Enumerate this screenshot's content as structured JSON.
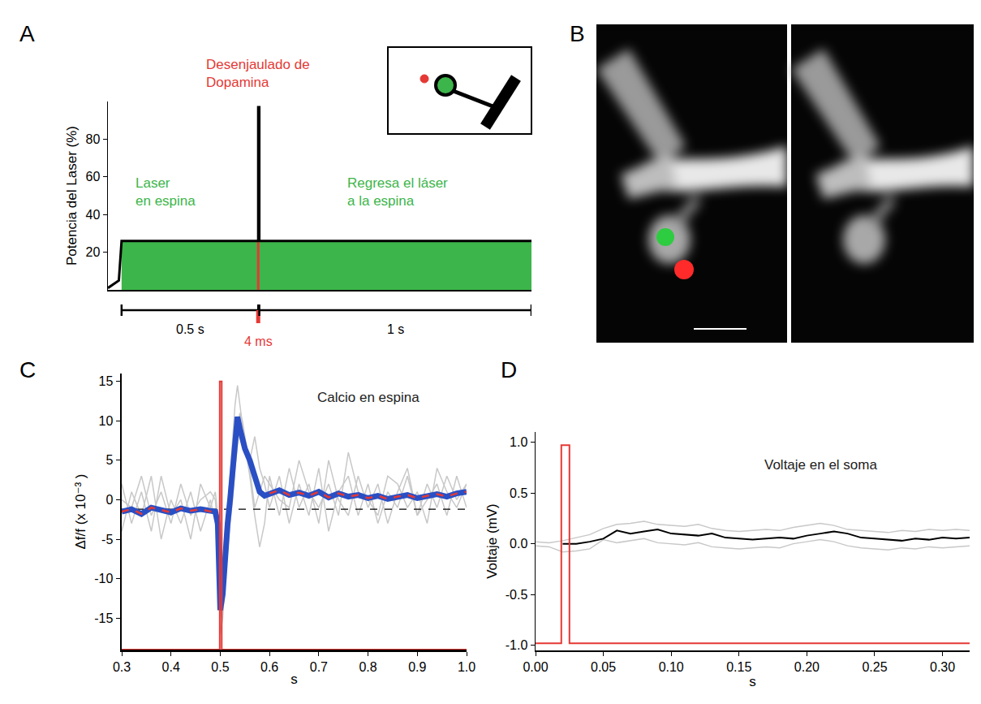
{
  "chart_data": [
    {
      "panel_label": "A",
      "type": "line",
      "y_label": "Potencia del Laser (%)",
      "xlim": [
        -0.05,
        1.5
      ],
      "ylim": [
        0,
        100
      ],
      "yticks": [
        20,
        40,
        60,
        80
      ],
      "tick_labels": "y",
      "series": [
        {
          "type": "area",
          "color": "#3cb54a",
          "x": [
            0,
            1.5
          ],
          "values": [
            26,
            26
          ]
        },
        {
          "color": "#e53935",
          "x": [
            0.5,
            0.5
          ],
          "values": [
            0,
            26
          ]
        },
        {
          "color": "#000000",
          "x": [
            -0.05,
            -0.03,
            -0.01,
            0,
            0.5,
            0.5,
            0.504,
            0.504,
            1.5
          ],
          "values": [
            1,
            3,
            5,
            26,
            26,
            97,
            97,
            26,
            26
          ]
        }
      ],
      "annotations": [
        {
          "text": [
            "Desenjaulado de",
            "Dopamina"
          ],
          "color": "#e53935"
        },
        {
          "text": [
            "Laser",
            "en espina"
          ],
          "color": "#3cb54a"
        },
        {
          "text": [
            "Regresa el láser",
            "a la espina"
          ],
          "color": "#3cb54a"
        }
      ],
      "time_segments": [
        {
          "label": "0.5 s",
          "start": 0,
          "end": 0.5,
          "color": "#000000"
        },
        {
          "label": "4 ms",
          "start": 0.5,
          "end": 0.504,
          "color": "#e53935"
        },
        {
          "label": "1 s",
          "start": 0.504,
          "end": 1.5,
          "color": "#000000"
        }
      ]
    },
    {
      "panel_label": "C",
      "type": "line",
      "x_label": "s",
      "y_label": "Δf/f (x 10⁻³ )",
      "xlim": [
        0.3,
        1.0
      ],
      "xticks": [
        0.3,
        0.4,
        0.5,
        0.6,
        0.7,
        0.8,
        0.9,
        {
          "value": 1.0,
          "label": "1.0"
        }
      ],
      "ylim": [
        -19,
        16
      ],
      "yticks": [
        -15,
        -10,
        -5,
        0,
        5,
        10,
        15
      ],
      "series": [
        {
          "color": "#c8c8c8",
          "x": [
            0.3,
            0.32,
            0.34,
            0.36,
            0.38,
            0.4,
            0.42,
            0.44,
            0.46,
            0.48,
            0.49,
            0.495,
            0.5,
            0.505,
            0.51,
            0.515,
            0.52,
            0.525,
            0.53,
            0.535,
            0.54,
            0.545,
            0.55,
            0.56,
            0.57,
            0.58,
            0.59,
            0.6,
            0.62,
            0.64,
            0.66,
            0.68,
            0.7,
            0.72,
            0.74,
            0.76,
            0.78,
            0.8,
            0.82,
            0.84,
            0.86,
            0.88,
            0.9,
            0.92,
            0.94,
            0.96,
            0.98,
            1.0
          ],
          "values": [
            2,
            -3,
            1,
            -4,
            3,
            -2,
            0,
            -5,
            2,
            -1,
            1,
            -2,
            -10,
            -8,
            -4,
            -1,
            3,
            8,
            12,
            14.5,
            12,
            9,
            7,
            3,
            -2,
            -6,
            -3,
            3,
            -2,
            4,
            -1,
            2,
            -3,
            5,
            0,
            -2,
            3,
            -1,
            2,
            -3,
            1,
            4,
            -2,
            2,
            -1,
            3,
            0,
            2
          ]
        },
        {
          "color": "#c8c8c8",
          "x": [
            0.3,
            0.32,
            0.34,
            0.36,
            0.38,
            0.4,
            0.42,
            0.44,
            0.46,
            0.48,
            0.49,
            0.495,
            0.5,
            0.505,
            0.51,
            0.515,
            0.52,
            0.525,
            0.53,
            0.535,
            0.54,
            0.545,
            0.55,
            0.56,
            0.57,
            0.58,
            0.59,
            0.6,
            0.62,
            0.64,
            0.66,
            0.68,
            0.7,
            0.72,
            0.74,
            0.76,
            0.78,
            0.8,
            0.82,
            0.84,
            0.86,
            0.88,
            0.9,
            0.92,
            0.94,
            0.96,
            0.98,
            1.0
          ],
          "values": [
            -4,
            1,
            -2,
            3,
            -5,
            0,
            -3,
            1,
            -4,
            0,
            -3,
            -5,
            -17,
            -15,
            -10,
            -6,
            -3,
            0,
            4,
            7,
            9,
            8,
            6,
            5,
            8,
            4,
            2,
            -1,
            3,
            -3,
            2,
            -2,
            4,
            -4,
            1,
            3,
            -2,
            2,
            -3,
            1,
            -1,
            3,
            -2,
            0,
            2,
            -2,
            3,
            -1
          ]
        },
        {
          "color": "#c8c8c8",
          "x": [
            0.3,
            0.32,
            0.34,
            0.36,
            0.38,
            0.4,
            0.42,
            0.44,
            0.46,
            0.48,
            0.49,
            0.495,
            0.5,
            0.505,
            0.51,
            0.515,
            0.52,
            0.525,
            0.53,
            0.535,
            0.54,
            0.545,
            0.55,
            0.56,
            0.57,
            0.58,
            0.59,
            0.6,
            0.62,
            0.64,
            0.66,
            0.68,
            0.7,
            0.72,
            0.74,
            0.76,
            0.78,
            0.8,
            0.82,
            0.84,
            0.86,
            0.88,
            0.9,
            0.92,
            0.94,
            0.96,
            0.98,
            1.0
          ],
          "values": [
            0,
            -1,
            3,
            -2,
            1,
            -3,
            2,
            -2,
            0,
            1,
            0,
            -4,
            -15,
            -13,
            -9,
            -4,
            -1,
            2,
            6,
            9,
            11,
            10,
            8,
            4,
            -1,
            1,
            3,
            2,
            0,
            -1,
            5,
            1,
            -1,
            2,
            -2,
            6,
            1,
            0,
            -2,
            3,
            2,
            -1,
            1,
            -3,
            4,
            1,
            -1,
            2
          ]
        },
        {
          "color": "#000000",
          "line_style": "dashed",
          "x": [
            0.3,
            1.0
          ],
          "values": [
            -1.2,
            -1.2
          ]
        },
        {
          "color": "#2a4fc4",
          "x": [
            0.3,
            0.32,
            0.34,
            0.36,
            0.38,
            0.4,
            0.42,
            0.44,
            0.46,
            0.48,
            0.49,
            0.495,
            0.5,
            0.505,
            0.51,
            0.515,
            0.52,
            0.525,
            0.53,
            0.535,
            0.54,
            0.545,
            0.55,
            0.56,
            0.57,
            0.58,
            0.59,
            0.6,
            0.62,
            0.64,
            0.66,
            0.68,
            0.7,
            0.72,
            0.74,
            0.76,
            0.78,
            0.8,
            0.82,
            0.84,
            0.86,
            0.88,
            0.9,
            0.92,
            0.94,
            0.96,
            0.98,
            1.0
          ],
          "values": [
            -1.5,
            -1.2,
            -1.8,
            -1.0,
            -1.3,
            -1.6,
            -1.1,
            -1.4,
            -1.2,
            -1.5,
            -1.5,
            -3,
            -14,
            -12,
            -7,
            -3,
            0,
            4,
            8,
            10.5,
            9,
            7.5,
            6.5,
            5,
            3,
            1,
            0.5,
            0.8,
            1.2,
            0.6,
            0.9,
            0.5,
            1.0,
            0.3,
            0.8,
            0.4,
            0.6,
            0.2,
            0.5,
            0.1,
            0.4,
            0.6,
            0.2,
            0.5,
            0.7,
            0.4,
            0.8,
            1.0
          ]
        },
        {
          "color": "#e53935",
          "line_style": "dashed",
          "x": [
            0.3,
            0.32,
            0.34,
            0.36,
            0.38,
            0.4,
            0.42,
            0.44,
            0.46,
            0.48,
            0.49,
            0.495,
            0.5,
            0.505,
            0.51,
            0.515,
            0.52,
            0.525,
            0.53,
            0.535,
            0.54,
            0.545,
            0.55,
            0.56,
            0.57,
            0.58,
            0.59,
            0.6,
            0.62,
            0.64,
            0.66,
            0.68,
            0.7,
            0.72,
            0.74,
            0.76,
            0.78,
            0.8,
            0.82,
            0.84,
            0.86,
            0.88,
            0.9,
            0.92,
            0.94,
            0.96,
            0.98,
            1.0
          ],
          "values": [
            -1.5,
            -1.2,
            -1.8,
            -1.0,
            -1.3,
            -1.6,
            -1.1,
            -1.4,
            -1.2,
            -1.5,
            -1.5,
            null,
            null,
            null,
            null,
            null,
            null,
            null,
            null,
            null,
            null,
            null,
            null,
            null,
            null,
            null,
            null,
            0.8,
            1.2,
            0.6,
            0.9,
            0.5,
            1.0,
            0.3,
            0.8,
            0.4,
            0.6,
            0.2,
            0.5,
            0.1,
            0.4,
            0.6,
            0.2,
            0.5,
            0.7,
            0.4,
            0.8,
            1.0
          ]
        },
        {
          "color": "#e53935",
          "x": [
            0.3,
            0.499,
            0.499,
            0.503,
            0.503,
            1.0
          ],
          "values": [
            -19,
            -19,
            15,
            15,
            -19,
            -19
          ]
        }
      ],
      "annotations": [
        {
          "text": [
            "Calcio en espina"
          ],
          "color": "#222222"
        }
      ]
    },
    {
      "panel_label": "D",
      "type": "line",
      "x_label": "s",
      "y_label": "Voltaje (mV)",
      "xlim": [
        0,
        0.32
      ],
      "xticks": [
        {
          "value": 0,
          "label": "0.00"
        },
        {
          "value": 0.05,
          "label": "0.05"
        },
        {
          "value": 0.1,
          "label": "0.10"
        },
        {
          "value": 0.15,
          "label": "0.15"
        },
        {
          "value": 0.2,
          "label": "0.20"
        },
        {
          "value": 0.25,
          "label": "0.25"
        },
        {
          "value": 0.3,
          "label": "0.30"
        }
      ],
      "ylim": [
        -1.05,
        1.1
      ],
      "yticks": [
        {
          "value": -1,
          "label": "-1.0"
        },
        -0.5,
        {
          "value": 0,
          "label": "0.0"
        },
        0.5,
        {
          "value": 1,
          "label": "1.0"
        }
      ],
      "series": [
        {
          "color": "#c8c8c8",
          "x": [
            0,
            0.01,
            0.02,
            0.03,
            0.04,
            0.05,
            0.06,
            0.07,
            0.08,
            0.09,
            0.1,
            0.11,
            0.12,
            0.13,
            0.14,
            0.15,
            0.16,
            0.17,
            0.18,
            0.19,
            0.2,
            0.21,
            0.22,
            0.23,
            0.24,
            0.25,
            0.26,
            0.27,
            0.28,
            0.29,
            0.3,
            0.31,
            0.32
          ],
          "values": [
            0.02,
            0.01,
            0.03,
            0.06,
            0.09,
            0.15,
            0.19,
            0.2,
            0.22,
            0.19,
            0.18,
            0.17,
            0.19,
            0.15,
            0.13,
            0.12,
            0.13,
            0.14,
            0.13,
            0.16,
            0.18,
            0.2,
            0.18,
            0.14,
            0.13,
            0.12,
            0.11,
            0.13,
            0.12,
            0.14,
            0.13,
            0.14,
            0.13
          ]
        },
        {
          "color": "#c8c8c8",
          "x": [
            0,
            0.01,
            0.02,
            0.03,
            0.04,
            0.05,
            0.06,
            0.07,
            0.08,
            0.09,
            0.1,
            0.11,
            0.12,
            0.13,
            0.14,
            0.15,
            0.16,
            0.17,
            0.18,
            0.19,
            0.2,
            0.21,
            0.22,
            0.23,
            0.24,
            0.25,
            0.26,
            0.27,
            0.28,
            0.29,
            0.3,
            0.31,
            0.32
          ],
          "values": [
            -0.02,
            -0.03,
            -0.08,
            -0.07,
            -0.05,
            0.04,
            0.01,
            0.03,
            0.05,
            0.01,
            0.0,
            -0.01,
            0.01,
            -0.03,
            -0.04,
            -0.05,
            -0.04,
            -0.03,
            -0.04,
            0.0,
            0.02,
            0.04,
            0.02,
            -0.02,
            -0.04,
            -0.05,
            -0.06,
            -0.04,
            -0.05,
            -0.03,
            -0.04,
            -0.03,
            -0.02
          ]
        },
        {
          "color": "#000000",
          "x": [
            0,
            0.01,
            0.02,
            0.03,
            0.04,
            0.05,
            0.06,
            0.07,
            0.08,
            0.09,
            0.1,
            0.11,
            0.12,
            0.13,
            0.14,
            0.15,
            0.16,
            0.17,
            0.18,
            0.19,
            0.2,
            0.21,
            0.22,
            0.23,
            0.24,
            0.25,
            0.26,
            0.27,
            0.28,
            0.29,
            0.3,
            0.31,
            0.32
          ],
          "values": [
            null,
            null,
            0.0,
            0.0,
            0.02,
            0.05,
            0.13,
            0.1,
            0.12,
            0.14,
            0.1,
            0.09,
            0.08,
            0.1,
            0.06,
            0.05,
            0.04,
            0.05,
            0.06,
            0.05,
            0.08,
            0.1,
            0.12,
            0.1,
            0.06,
            0.05,
            0.04,
            0.03,
            0.05,
            0.04,
            0.06,
            0.05,
            0.06
          ]
        },
        {
          "color": "#e53935",
          "x": [
            0,
            0.019,
            0.019,
            0.025,
            0.025,
            0.32
          ],
          "values": [
            -0.98,
            -0.98,
            0.97,
            0.97,
            -0.98,
            -0.98
          ]
        }
      ],
      "annotations": [
        {
          "text": [
            "Voltaje en el soma"
          ],
          "color": "#222222"
        }
      ]
    }
  ],
  "micrograph": {
    "panel_label": "B"
  }
}
